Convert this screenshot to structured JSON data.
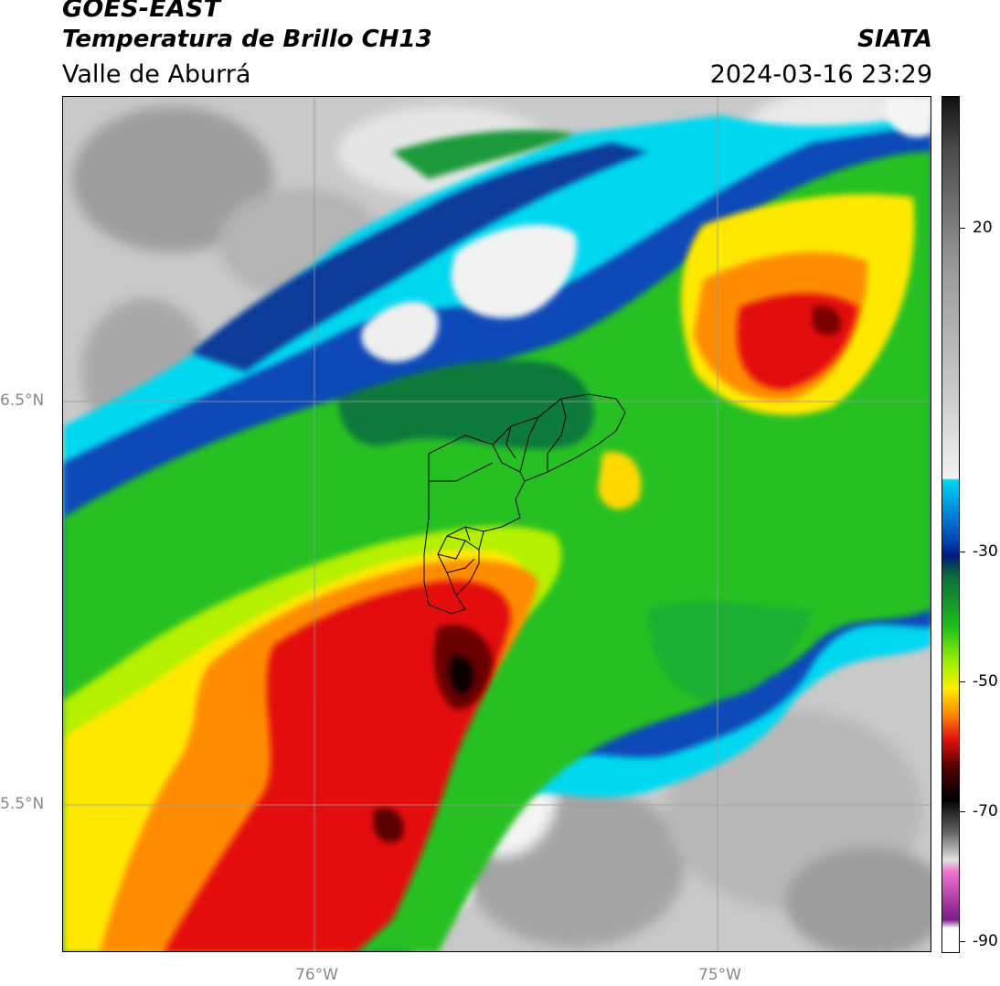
{
  "header": {
    "satellite": "GOES-EAST",
    "product": "Temperatura de Brillo CH13",
    "region": "Valle de Aburrá",
    "organization": "SIATA",
    "timestamp": "2024-03-16 23:29"
  },
  "map": {
    "lat_labels": [
      "6.5°N",
      "5.5°N"
    ],
    "lon_labels": [
      "76°W",
      "75°W"
    ],
    "gridline_color": "#999999",
    "boundary_color": "#000000"
  },
  "colorbar": {
    "tick_labels": [
      "20",
      "-30",
      "-50",
      "-70",
      "-90"
    ],
    "range": [
      -92,
      28
    ],
    "colors": {
      "warm_gray_top": "#111111",
      "mid_gray": "#9a9a9a",
      "light_gray": "#f2f2f2",
      "cyan": "#00d8f0",
      "blue": "#0050c0",
      "navy": "#001a80",
      "dark_green": "#0a6e3a",
      "green": "#22c21c",
      "lime": "#9cf000",
      "yellow": "#ffee00",
      "orange": "#ff8a00",
      "red": "#e01010",
      "dark_red": "#5a0000",
      "black": "#000000",
      "pink": "#f070d0",
      "purple": "#7a1a8a"
    }
  }
}
